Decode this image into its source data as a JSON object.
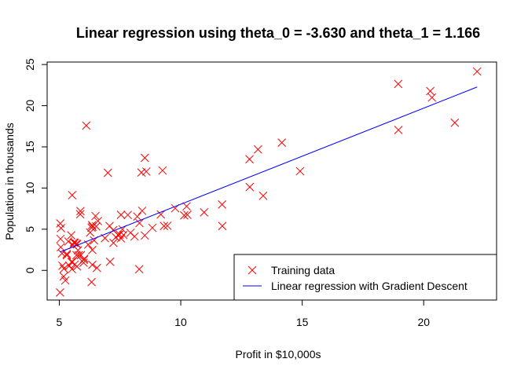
{
  "chart_data": {
    "type": "scatter",
    "title": "Linear regression using theta_0 = -3.630 and theta_1 = 1.166",
    "xlabel": "Profit in $10,000s",
    "ylabel": "Population in thousands",
    "xlim": [
      4.5,
      23.0
    ],
    "ylim": [
      -3.6,
      25.3
    ],
    "xticks": [
      5,
      10,
      15,
      20
    ],
    "yticks": [
      0,
      5,
      10,
      15,
      20,
      25
    ],
    "grid": false,
    "legend_position": "bottom-right",
    "series": [
      {
        "name": "Training data",
        "kind": "points",
        "marker": "x",
        "color": "#ff0000",
        "points": [
          [
            6.11,
            17.59
          ],
          [
            5.53,
            9.13
          ],
          [
            8.52,
            13.66
          ],
          [
            7.0,
            11.85
          ],
          [
            5.86,
            6.82
          ],
          [
            8.38,
            11.89
          ],
          [
            7.48,
            4.35
          ],
          [
            8.58,
            12.0
          ],
          [
            6.49,
            6.6
          ],
          [
            5.05,
            3.82
          ],
          [
            5.71,
            3.25
          ],
          [
            14.16,
            15.51
          ],
          [
            5.73,
            3.16
          ],
          [
            8.41,
            7.23
          ],
          [
            5.64,
            0.72
          ],
          [
            5.37,
            3.51
          ],
          [
            6.37,
            5.3
          ],
          [
            5.13,
            0.56
          ],
          [
            6.43,
            3.65
          ],
          [
            7.07,
            5.39
          ],
          [
            6.19,
            3.14
          ],
          [
            20.27,
            21.77
          ],
          [
            5.49,
            4.26
          ],
          [
            6.33,
            5.19
          ],
          [
            5.56,
            3.08
          ],
          [
            18.95,
            22.64
          ],
          [
            12.83,
            13.5
          ],
          [
            10.96,
            7.05
          ],
          [
            13.18,
            14.69
          ],
          [
            22.2,
            24.15
          ],
          [
            5.25,
            -1.22
          ],
          [
            6.59,
            5.99
          ],
          [
            9.25,
            12.13
          ],
          [
            5.89,
            1.85
          ],
          [
            8.21,
            6.54
          ],
          [
            7.93,
            4.56
          ],
          [
            8.1,
            4.12
          ],
          [
            5.6,
            3.39
          ],
          [
            12.84,
            10.12
          ],
          [
            6.35,
            5.5
          ],
          [
            5.41,
            0.56
          ],
          [
            6.88,
            3.91
          ],
          [
            11.71,
            5.39
          ],
          [
            5.77,
            2.44
          ],
          [
            7.82,
            6.73
          ],
          [
            7.09,
            1.05
          ],
          [
            5.07,
            5.13
          ],
          [
            5.8,
            1.84
          ],
          [
            11.7,
            8.0
          ],
          [
            5.54,
            1.02
          ],
          [
            7.54,
            6.75
          ],
          [
            5.31,
            1.84
          ],
          [
            7.42,
            4.29
          ],
          [
            7.6,
            5.0
          ],
          [
            6.03,
            1.42
          ],
          [
            6.33,
            -1.42
          ],
          [
            6.36,
            2.48
          ],
          [
            6.27,
            4.6
          ],
          [
            5.64,
            3.36
          ],
          [
            9.31,
            5.39
          ],
          [
            9.45,
            5.42
          ],
          [
            8.83,
            5.17
          ],
          [
            5.18,
            -0.74
          ],
          [
            21.28,
            17.93
          ],
          [
            14.91,
            12.05
          ],
          [
            18.96,
            17.05
          ],
          [
            7.22,
            4.89
          ],
          [
            8.3,
            5.74
          ],
          [
            10.24,
            7.78
          ],
          [
            5.5,
            1.02
          ],
          [
            20.34,
            20.99
          ],
          [
            10.14,
            6.68
          ],
          [
            7.33,
            4.03
          ],
          [
            6.01,
            1.28
          ],
          [
            7.23,
            3.34
          ],
          [
            5.03,
            -2.68
          ],
          [
            6.55,
            0.3
          ],
          [
            7.54,
            3.88
          ],
          [
            5.04,
            5.7
          ],
          [
            10.27,
            6.75
          ],
          [
            5.11,
            2.06
          ],
          [
            5.73,
            0.48
          ],
          [
            5.19,
            0.2
          ],
          [
            6.36,
            0.68
          ],
          [
            9.77,
            7.54
          ],
          [
            6.52,
            5.34
          ],
          [
            8.52,
            4.24
          ],
          [
            9.18,
            6.8
          ],
          [
            6.0,
            0.93
          ],
          [
            5.52,
            0.15
          ],
          [
            5.06,
            2.82
          ],
          [
            5.71,
            1.85
          ],
          [
            7.64,
            4.3
          ],
          [
            5.87,
            7.2
          ],
          [
            5.31,
            1.99
          ],
          [
            8.29,
            0.14
          ],
          [
            13.39,
            9.06
          ]
        ]
      },
      {
        "name": "Linear regression with Gradient Descent",
        "kind": "line",
        "color": "#0000ff",
        "points": [
          [
            5.03,
            2.23
          ],
          [
            22.2,
            22.27
          ]
        ]
      }
    ]
  }
}
